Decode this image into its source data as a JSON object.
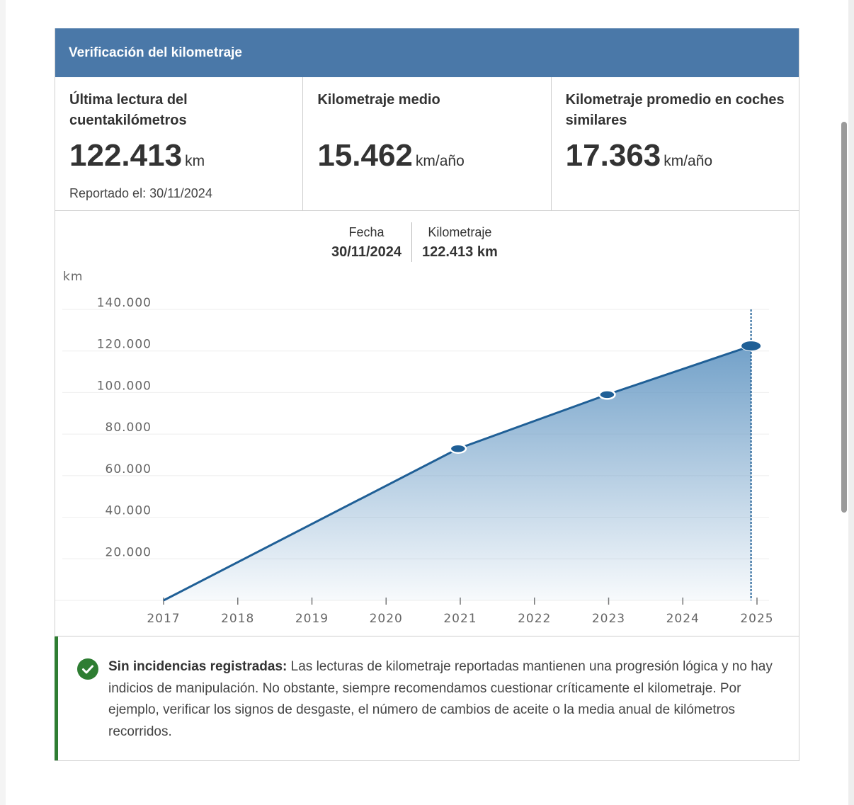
{
  "header": {
    "title": "Verificación del kilometraje"
  },
  "stats": [
    {
      "label": "Última lectura del cuentakilómetros",
      "value": "122.413",
      "unit": "km",
      "sub": "Reportado el: 30/11/2024"
    },
    {
      "label": "Kilometraje medio",
      "value": "15.462",
      "unit": "km/año"
    },
    {
      "label": "Kilometraje promedio en coches similares",
      "value": "17.363",
      "unit": "km/año"
    }
  ],
  "tooltip": {
    "date_label": "Fecha",
    "date_value": "30/11/2024",
    "km_label": "Kilometraje",
    "km_value": "122.413 km"
  },
  "chart_data": {
    "type": "area",
    "ylabel": "km",
    "xlabel": "",
    "x_ticks": [
      "2017",
      "2018",
      "2019",
      "2020",
      "2021",
      "2022",
      "2023",
      "2024",
      "2025"
    ],
    "y_ticks": [
      "20.000",
      "40.000",
      "60.000",
      "80.000",
      "100.000",
      "120.000",
      "140.000"
    ],
    "ylim": [
      0,
      140000
    ],
    "xlim": [
      2017,
      2025
    ],
    "grid": true,
    "points": [
      {
        "x": 2017.0,
        "y": 0
      },
      {
        "x": 2020.97,
        "y": 73000
      },
      {
        "x": 2022.98,
        "y": 99000
      },
      {
        "x": 2024.92,
        "y": 122413
      }
    ],
    "highlighted_point": {
      "x": 2024.92,
      "y": 122413
    },
    "colors": {
      "line": "#1f5f96",
      "fill": "#6b9cc6"
    }
  },
  "note": {
    "title": "Sin incidencias registradas:",
    "text": " Las lecturas de kilometraje reportadas mantienen una progresión lógica y no hay indicios de manipulación. No obstante, siempre recomendamos cuestionar críticamente el kilometraje. Por ejemplo, verificar los signos de desgaste, el número de cambios de aceite o la media anual de kilómetros recorridos.",
    "icon": "check-circle-icon",
    "color": "#2e7d32"
  },
  "colors": {
    "header": "#4a78a8"
  }
}
